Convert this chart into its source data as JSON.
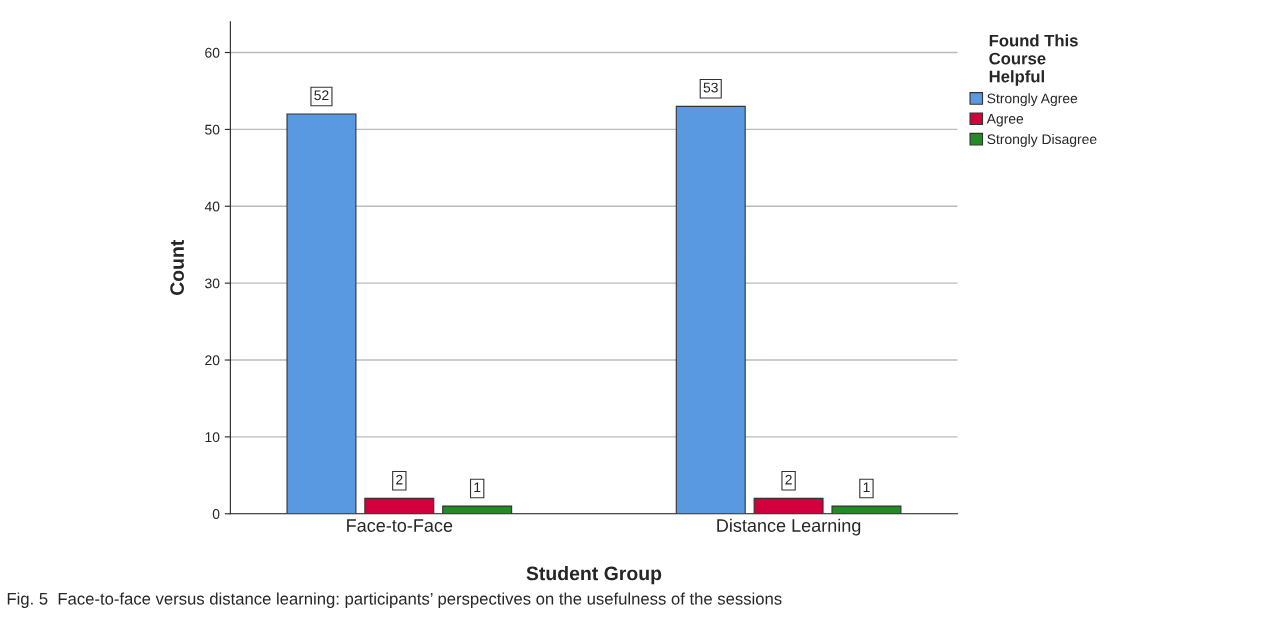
{
  "chart_data": {
    "type": "bar",
    "xlabel": "Student Group",
    "ylabel": "Count",
    "categories": [
      "Face-to-Face",
      "Distance Learning"
    ],
    "series": [
      {
        "name": "Strongly Agree",
        "color": "#5899e2",
        "values": [
          52,
          53
        ]
      },
      {
        "name": "Agree",
        "color": "#d2003c",
        "values": [
          2,
          2
        ]
      },
      {
        "name": "Strongly Disagree",
        "color": "#238b23",
        "values": [
          1,
          1
        ]
      }
    ],
    "ylim": [
      0,
      64
    ],
    "yticks": [
      0,
      10,
      20,
      30,
      40,
      50,
      60
    ],
    "grid": "y",
    "legend": "top right",
    "legend_title": "Found This\nCourse\nHelpful",
    "data_labels": true,
    "annotations": [
      "Fig. 5  Face-to-face versus distance learning: participants’ perspectives on the usefulness of the sessions"
    ]
  }
}
